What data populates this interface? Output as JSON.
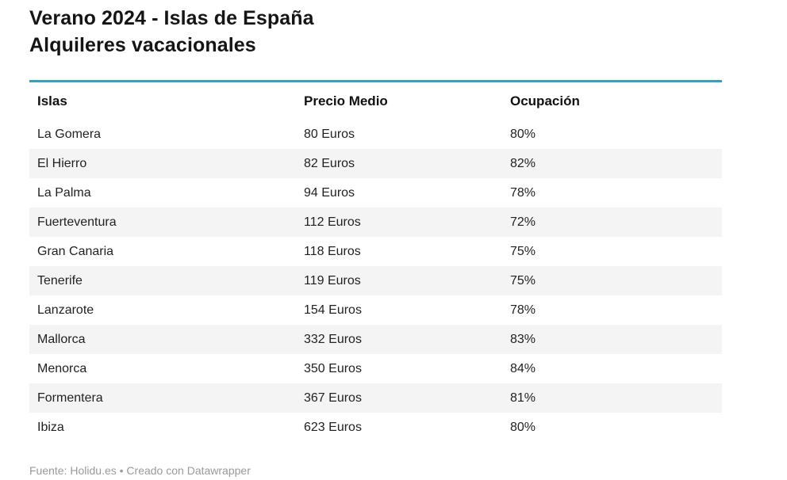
{
  "title": {
    "line1": "Verano 2024 - Islas de España",
    "line2": "Alquileres vacacionales"
  },
  "table": {
    "columns": [
      {
        "key": "isla",
        "label": "Islas"
      },
      {
        "key": "precio",
        "label": "Precio Medio"
      },
      {
        "key": "ocupacion",
        "label": "Ocupación"
      }
    ],
    "rows": [
      {
        "isla": "La Gomera",
        "precio": "80 Euros",
        "ocupacion": "80%"
      },
      {
        "isla": "El Hierro",
        "precio": "82 Euros",
        "ocupacion": "82%"
      },
      {
        "isla": "La Palma",
        "precio": "94 Euros",
        "ocupacion": "78%"
      },
      {
        "isla": "Fuerteventura",
        "precio": "112 Euros",
        "ocupacion": "72%"
      },
      {
        "isla": "Gran Canaria",
        "precio": "118 Euros",
        "ocupacion": "75%"
      },
      {
        "isla": "Tenerife",
        "precio": "119 Euros",
        "ocupacion": "75%"
      },
      {
        "isla": "Lanzarote",
        "precio": "154 Euros",
        "ocupacion": "78%"
      },
      {
        "isla": "Mallorca",
        "precio": "332 Euros",
        "ocupacion": "83%"
      },
      {
        "isla": "Menorca",
        "precio": "350 Euros",
        "ocupacion": "84%"
      },
      {
        "isla": "Formentera",
        "precio": "367 Euros",
        "ocupacion": "81%"
      },
      {
        "isla": "Ibiza",
        "precio": "623 Euros",
        "ocupacion": "80%"
      }
    ]
  },
  "footer": {
    "prefix": "Fuente: ",
    "source_link": "Holidu.es",
    "middle": " • Creado con ",
    "credit_link": "Datawrapper"
  },
  "colors": {
    "accent": "#31a2c5",
    "stripe": "#f4f4f4",
    "title_text": "#151515",
    "cell_text": "#222222",
    "footer_text": "#9a9a9a"
  },
  "chart_data": {
    "type": "table",
    "title": "Verano 2024 - Islas de España Alquileres vacacionales",
    "columns": [
      "Islas",
      "Precio Medio",
      "Ocupación"
    ],
    "categories": [
      "La Gomera",
      "El Hierro",
      "La Palma",
      "Fuerteventura",
      "Gran Canaria",
      "Tenerife",
      "Lanzarote",
      "Mallorca",
      "Menorca",
      "Formentera",
      "Ibiza"
    ],
    "series": [
      {
        "name": "Precio Medio (Euros)",
        "values": [
          80,
          82,
          94,
          112,
          118,
          119,
          154,
          332,
          350,
          367,
          623
        ]
      },
      {
        "name": "Ocupación (%)",
        "values": [
          80,
          82,
          78,
          72,
          75,
          75,
          78,
          83,
          84,
          81,
          80
        ]
      }
    ],
    "source": "Fuente: Holidu.es • Creado con Datawrapper",
    "layout": {
      "zebra_stripes": true,
      "accent_rule_color": "#31a2c5",
      "grid": false,
      "legend": "none"
    }
  }
}
